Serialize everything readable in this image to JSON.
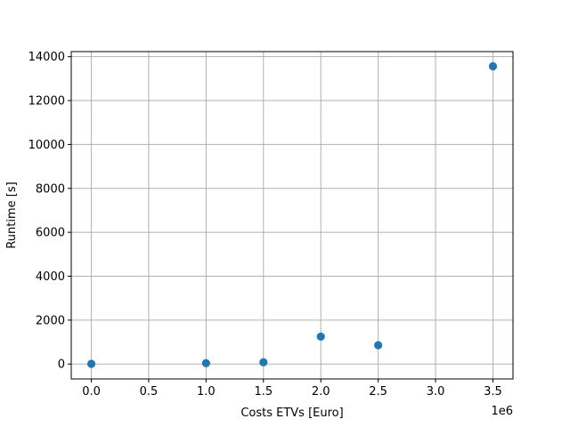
{
  "chart_data": {
    "type": "scatter",
    "title": "",
    "xlabel": "Costs ETVs [Euro]",
    "ylabel": "Runtime [s]",
    "x_offset_label": "1e6",
    "x_scale": 1000000,
    "xlim": [
      -0.175,
      3.675
    ],
    "ylim": [
      -680,
      14230
    ],
    "xticks": [
      0.0,
      0.5,
      1.0,
      1.5,
      2.0,
      2.5,
      3.0,
      3.5
    ],
    "xtick_labels": [
      "0.0",
      "0.5",
      "1.0",
      "1.5",
      "2.0",
      "2.5",
      "3.0",
      "3.5"
    ],
    "yticks": [
      0,
      2000,
      4000,
      6000,
      8000,
      10000,
      12000,
      14000
    ],
    "ytick_labels": [
      "0",
      "2000",
      "4000",
      "6000",
      "8000",
      "10000",
      "12000",
      "14000"
    ],
    "grid": true,
    "marker_color": "#1f77b4",
    "series": [
      {
        "x": [
          0.0,
          1.0,
          1.5,
          2.0,
          2.5,
          3.5
        ],
        "y": [
          10,
          40,
          80,
          1250,
          860,
          13560
        ]
      }
    ]
  }
}
